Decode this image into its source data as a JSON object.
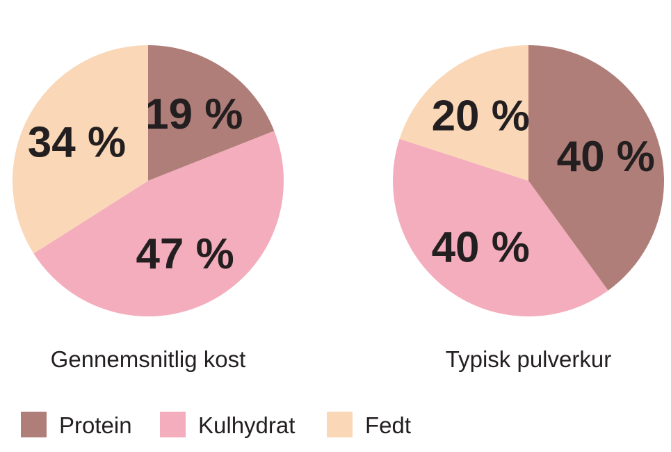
{
  "legend": [
    {
      "label": "Protein",
      "color": "#b07e78"
    },
    {
      "label": "Kulhydrat",
      "color": "#f4adbc"
    },
    {
      "label": "Fedt",
      "color": "#f9d7b7"
    }
  ],
  "chart_data": [
    {
      "type": "pie",
      "title": "Gennemsnitlig kost",
      "categories": [
        "Protein",
        "Kulhydrat",
        "Fedt"
      ],
      "values": [
        19,
        47,
        34
      ],
      "labels": [
        "19 %",
        "47 %",
        "34 %"
      ],
      "colors": [
        "#b07e78",
        "#f4adbc",
        "#f9d7b7"
      ],
      "start": "top, clockwise"
    },
    {
      "type": "pie",
      "title": "Typisk pulverkur",
      "categories": [
        "Protein",
        "Kulhydrat",
        "Fedt"
      ],
      "values": [
        40,
        40,
        20
      ],
      "labels": [
        "40 %",
        "40 %",
        "20 %"
      ],
      "colors": [
        "#b07e78",
        "#f4adbc",
        "#f9d7b7"
      ],
      "start": "top, clockwise"
    }
  ]
}
